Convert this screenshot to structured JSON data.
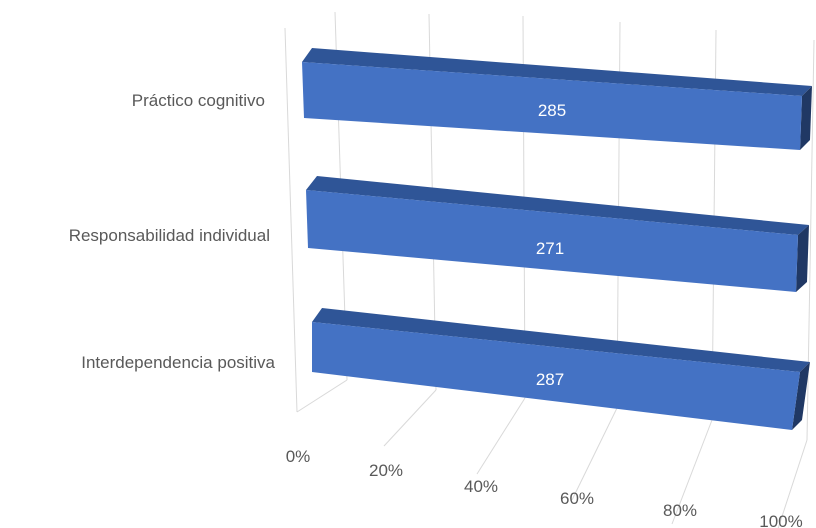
{
  "chart_data": {
    "type": "bar",
    "orientation": "horizontal",
    "stacked": "100%",
    "categories": [
      "Interdependencia positiva",
      "Responsabilidad individual",
      "Práctico cognitivo"
    ],
    "series": [
      {
        "values": [
          287,
          271,
          285
        ],
        "data_labels": [
          "287",
          "271",
          "285"
        ]
      }
    ],
    "xticks": [
      "0%",
      "20%",
      "40%",
      "60%",
      "80%",
      "100%"
    ],
    "xlim": [
      0,
      1
    ],
    "grid": true,
    "colors": {
      "bar_front": "#4472C4",
      "bar_top": "#2F5597",
      "bar_side": "#203864",
      "grid": "#D9D9D9"
    }
  }
}
